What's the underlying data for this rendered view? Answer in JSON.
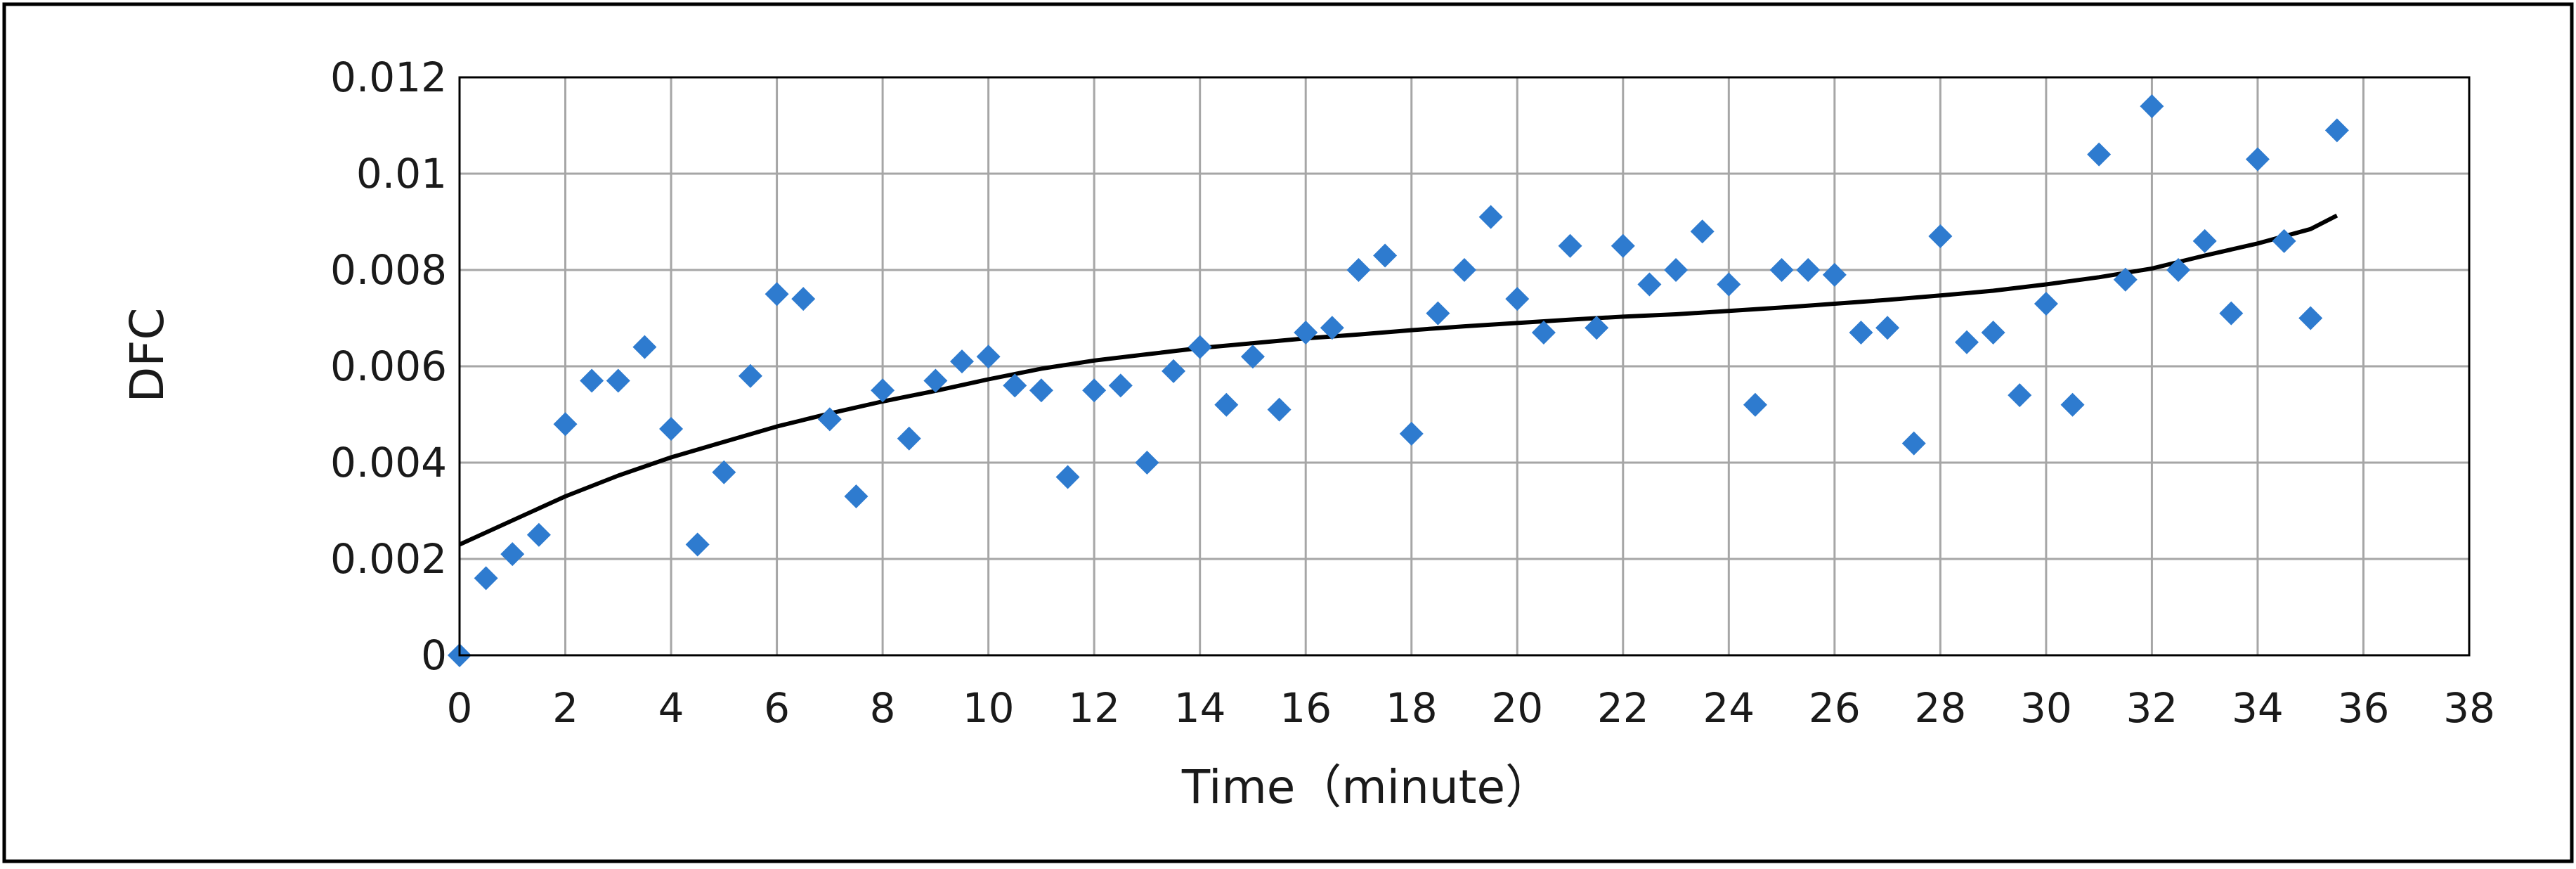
{
  "chart_data": {
    "type": "scatter",
    "title": "",
    "xlabel": "Time（minute）",
    "ylabel": "DFC",
    "xlim": [
      0,
      38
    ],
    "ylim": [
      0,
      0.012
    ],
    "grid": true,
    "legend": "none",
    "x_ticks": [
      "0",
      "2",
      "4",
      "6",
      "8",
      "10",
      "12",
      "14",
      "16",
      "18",
      "20",
      "22",
      "24",
      "26",
      "28",
      "30",
      "32",
      "34",
      "36",
      "38"
    ],
    "y_ticks": [
      "0",
      "0.002",
      "0.004",
      "0.006",
      "0.008",
      "0.01",
      "0.012"
    ],
    "colors": {
      "points": "#2e7bcf",
      "trend": "#000000",
      "grid": "#a6a6a6",
      "frame": "#000000"
    },
    "series": [
      {
        "marker": "diamond",
        "x": [
          0,
          0.5,
          1,
          1.5,
          2,
          2.5,
          3,
          3.5,
          4,
          4.5,
          5,
          5.5,
          6,
          6.5,
          7,
          7.5,
          8,
          8.5,
          9,
          9.5,
          10,
          10.5,
          11,
          11.5,
          12,
          12.5,
          13,
          13.5,
          14,
          14.5,
          15,
          15.5,
          16,
          16.5,
          17,
          17.5,
          18,
          18.5,
          19,
          19.5,
          20,
          20.5,
          21,
          21.5,
          22,
          22.5,
          23,
          23.5,
          24,
          24.5,
          25,
          25.5,
          26,
          26.5,
          27,
          27.5,
          28,
          28.5,
          29,
          29.5,
          30,
          30.5,
          31,
          31.5,
          32,
          32.5,
          33,
          33.5,
          34,
          34.5,
          35,
          35.5
        ],
        "y": [
          0,
          0.0016,
          0.0021,
          0.0025,
          0.0048,
          0.0057,
          0.0057,
          0.0064,
          0.0047,
          0.0023,
          0.0038,
          0.0058,
          0.0075,
          0.0074,
          0.0049,
          0.0033,
          0.0055,
          0.0045,
          0.0057,
          0.0061,
          0.0062,
          0.0056,
          0.0055,
          0.0037,
          0.0055,
          0.0056,
          0.004,
          0.0059,
          0.0064,
          0.0052,
          0.0062,
          0.0051,
          0.0067,
          0.0068,
          0.008,
          0.0083,
          0.0046,
          0.0071,
          0.008,
          0.0091,
          0.0074,
          0.0067,
          0.0085,
          0.0068,
          0.0085,
          0.0077,
          0.008,
          0.0088,
          0.0077,
          0.0052,
          0.008,
          0.008,
          0.0079,
          0.0067,
          0.0068,
          0.0044,
          0.0087,
          0.0065,
          0.0067,
          0.0054,
          0.0073,
          0.0052,
          0.0104,
          0.0078,
          0.0114,
          0.008,
          0.0086,
          0.0071,
          0.0103,
          0.0086,
          0.007,
          0.0109
        ]
      }
    ],
    "trendline": {
      "type": "polynomial",
      "x": [
        0,
        1,
        2,
        3,
        4,
        5,
        6,
        7,
        8,
        9,
        10,
        11,
        12,
        13,
        14,
        15,
        16,
        17,
        18,
        19,
        20,
        21,
        22,
        23,
        24,
        25,
        26,
        27,
        28,
        29,
        30,
        31,
        32,
        33,
        34,
        35,
        35.5
      ],
      "y": [
        0.0023,
        0.0028,
        0.0033,
        0.00373,
        0.00411,
        0.00443,
        0.00475,
        0.00502,
        0.00527,
        0.00549,
        0.00573,
        0.00595,
        0.00612,
        0.00625,
        0.00638,
        0.00648,
        0.00658,
        0.00666,
        0.00675,
        0.00683,
        0.0069,
        0.00697,
        0.00703,
        0.00708,
        0.00715,
        0.00722,
        0.0073,
        0.00738,
        0.00747,
        0.00757,
        0.0077,
        0.00785,
        0.00803,
        0.0083,
        0.00855,
        0.00885,
        0.00913
      ]
    }
  }
}
